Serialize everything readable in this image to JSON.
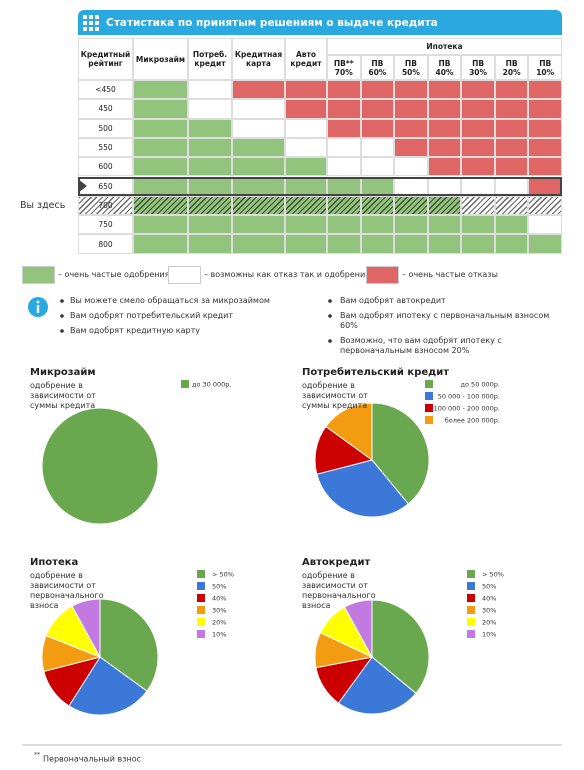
{
  "header": {
    "title": "Статистика по принятым решениям о выдаче кредита"
  },
  "table": {
    "columns": [
      "Кредитный рейтинг",
      "Микрозайм",
      "Потреб. кредит",
      "Кредитная карта",
      "Авто кредит"
    ],
    "group": {
      "label": "Ипотека",
      "columns": [
        "ПВ** 70%",
        "ПВ 60%",
        "ПВ 50%",
        "ПВ 40%",
        "ПВ 30%",
        "ПВ 20%",
        "ПВ 10%"
      ]
    },
    "rows": [
      {
        "rating": "<450",
        "cells": [
          0,
          1,
          2,
          2,
          2,
          2,
          2,
          2,
          2,
          2,
          2
        ]
      },
      {
        "rating": "450",
        "cells": [
          0,
          1,
          1,
          2,
          2,
          2,
          2,
          2,
          2,
          2,
          2
        ]
      },
      {
        "rating": "500",
        "cells": [
          0,
          0,
          1,
          1,
          2,
          2,
          2,
          2,
          2,
          2,
          2
        ]
      },
      {
        "rating": "550",
        "cells": [
          0,
          0,
          0,
          1,
          1,
          1,
          2,
          2,
          2,
          2,
          2
        ]
      },
      {
        "rating": "600",
        "cells": [
          0,
          0,
          0,
          0,
          1,
          1,
          1,
          2,
          2,
          2,
          2
        ]
      },
      {
        "rating": "650",
        "cells": [
          0,
          0,
          0,
          0,
          0,
          0,
          1,
          1,
          1,
          1,
          2
        ]
      },
      {
        "rating": "700",
        "cells": [
          0,
          0,
          0,
          0,
          0,
          0,
          0,
          0,
          1,
          1,
          1
        ]
      },
      {
        "rating": "750",
        "cells": [
          0,
          0,
          0,
          0,
          0,
          0,
          0,
          0,
          0,
          0,
          1
        ]
      },
      {
        "rating": "800",
        "cells": [
          0,
          0,
          0,
          0,
          0,
          0,
          0,
          0,
          0,
          0,
          0
        ]
      }
    ],
    "marked_row": 5,
    "you_are_here": {
      "label": "Вы здесь",
      "row": 6
    }
  },
  "legend": [
    {
      "color": "#93c47d",
      "label": "– очень частые одобрения"
    },
    {
      "color": "#ffffff",
      "label": "– возможны как отказ так и одобрение"
    },
    {
      "color": "#e06666",
      "label": "– очень частые отказы"
    }
  ],
  "notes": {
    "left": [
      "Вы можете смело обращаться за микрозаймом",
      "Вам одобрят потребительский кредит",
      "Вам одобрят кредитную карту"
    ],
    "right": [
      "Вам одобрят автокредит",
      "Вам одобрят ипотеку с первоначальным взносом 60%",
      "Возможно, что вам одобрят ипотеку с первоначальным взносом 20%"
    ]
  },
  "chart_data": [
    {
      "type": "pie",
      "title": "Микрозайм",
      "subtitle": "одобрение в зависимости от суммы кредита",
      "categories": [
        "до 30 000р."
      ],
      "colors": [
        "#6aa84f"
      ],
      "values": [
        100
      ]
    },
    {
      "type": "pie",
      "title": "Потребительский кредит",
      "subtitle": "одобрение в зависимости от суммы кредита",
      "categories": [
        "до 50 000р.",
        "50 000 - 100 000р.",
        "100 000 - 200 000р.",
        "более 200 000р."
      ],
      "colors": [
        "#6aa84f",
        "#3c78d8",
        "#cc0000",
        "#f39c12"
      ],
      "values": [
        39,
        32,
        14,
        15
      ]
    },
    {
      "type": "pie",
      "title": "Ипотека",
      "subtitle": "одобрение в зависимости от первоначального взноса",
      "categories": [
        "> 50%",
        "50%",
        "40%",
        "30%",
        "20%",
        "10%"
      ],
      "colors": [
        "#6aa84f",
        "#3c78d8",
        "#cc0000",
        "#f39c12",
        "#ffff00",
        "#c27ae0"
      ],
      "values": [
        35,
        24,
        12,
        10,
        11,
        8
      ]
    },
    {
      "type": "pie",
      "title": "Автокредит",
      "subtitle": "одобрение в зависимости от первоначального взноса",
      "categories": [
        "> 50%",
        "50%",
        "40%",
        "30%",
        "20%",
        "10%"
      ],
      "colors": [
        "#6aa84f",
        "#3c78d8",
        "#cc0000",
        "#f39c12",
        "#ffff00",
        "#c27ae0"
      ],
      "values": [
        36,
        24,
        12,
        10,
        10,
        8
      ]
    }
  ],
  "footnote": {
    "mark": "**",
    "text": "Первоначальный взнос"
  }
}
